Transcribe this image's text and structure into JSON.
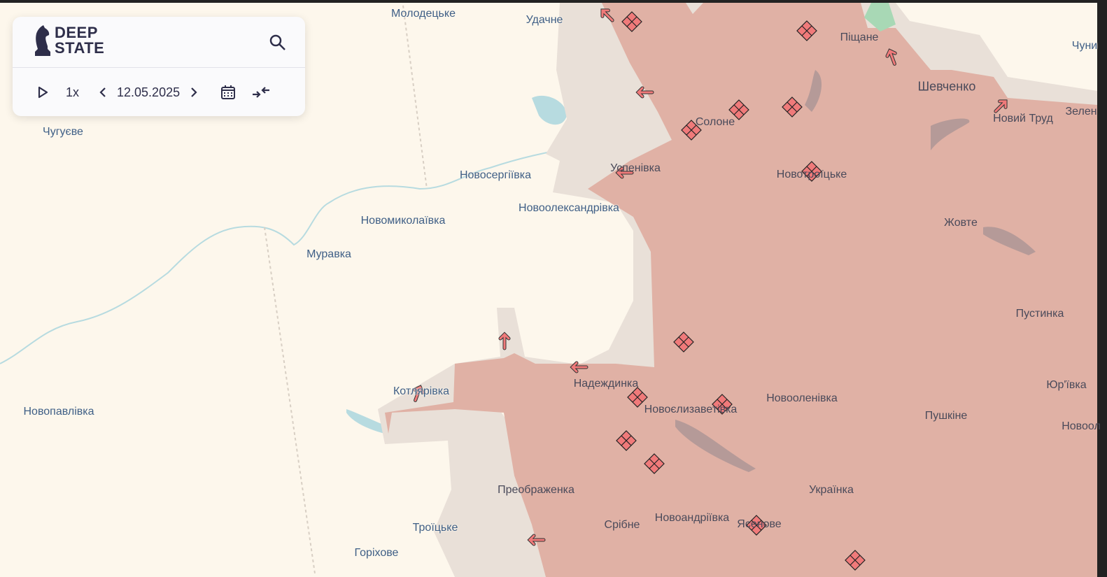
{
  "app": {
    "logo_line1": "DEEP",
    "logo_line2": "STATE"
  },
  "toolbar": {
    "speed": "1x",
    "date": "12.05.2025"
  },
  "icons": [
    "play-icon",
    "chevron-left-icon",
    "chevron-right-icon",
    "calendar-icon",
    "collapse-icon",
    "search-icon",
    "knight-logo-icon",
    "attack-arrow-icon",
    "clash-marker-icon"
  ],
  "colors": {
    "occupied": "#e0b1a5",
    "grey_zone": "#e9e0d8",
    "background": "#fdf7ec",
    "marker": "#f07a7a",
    "label": "#3f5f86"
  },
  "places": [
    {
      "name": "Молодецьке"
    },
    {
      "name": "Удачне"
    },
    {
      "name": "Піщане"
    },
    {
      "name": "Шевченко"
    },
    {
      "name": "Чуни"
    },
    {
      "name": "Новий Труд"
    },
    {
      "name": "Зелен"
    },
    {
      "name": "Солоне"
    },
    {
      "name": "Чугуєве"
    },
    {
      "name": "Новосергіївка"
    },
    {
      "name": "Успенівка"
    },
    {
      "name": "Новотроїцьке"
    },
    {
      "name": "Новоолександрівка"
    },
    {
      "name": "Новомиколаївка"
    },
    {
      "name": "Жовте"
    },
    {
      "name": "Муравка"
    },
    {
      "name": "Пустинка"
    },
    {
      "name": "Котлярівка"
    },
    {
      "name": "Надеждинка"
    },
    {
      "name": "Новоолeнівка"
    },
    {
      "name": "Юр'ївка"
    },
    {
      "name": "Новопавлівка"
    },
    {
      "name": "Новоєлизаветівка"
    },
    {
      "name": "Пушкіне"
    },
    {
      "name": "Новоол"
    },
    {
      "name": "Преображенка"
    },
    {
      "name": "Українка"
    },
    {
      "name": "Троїцьке"
    },
    {
      "name": "Срібне"
    },
    {
      "name": "Новоандріївка"
    },
    {
      "name": "Ясенове"
    },
    {
      "name": "Горіхове"
    }
  ]
}
